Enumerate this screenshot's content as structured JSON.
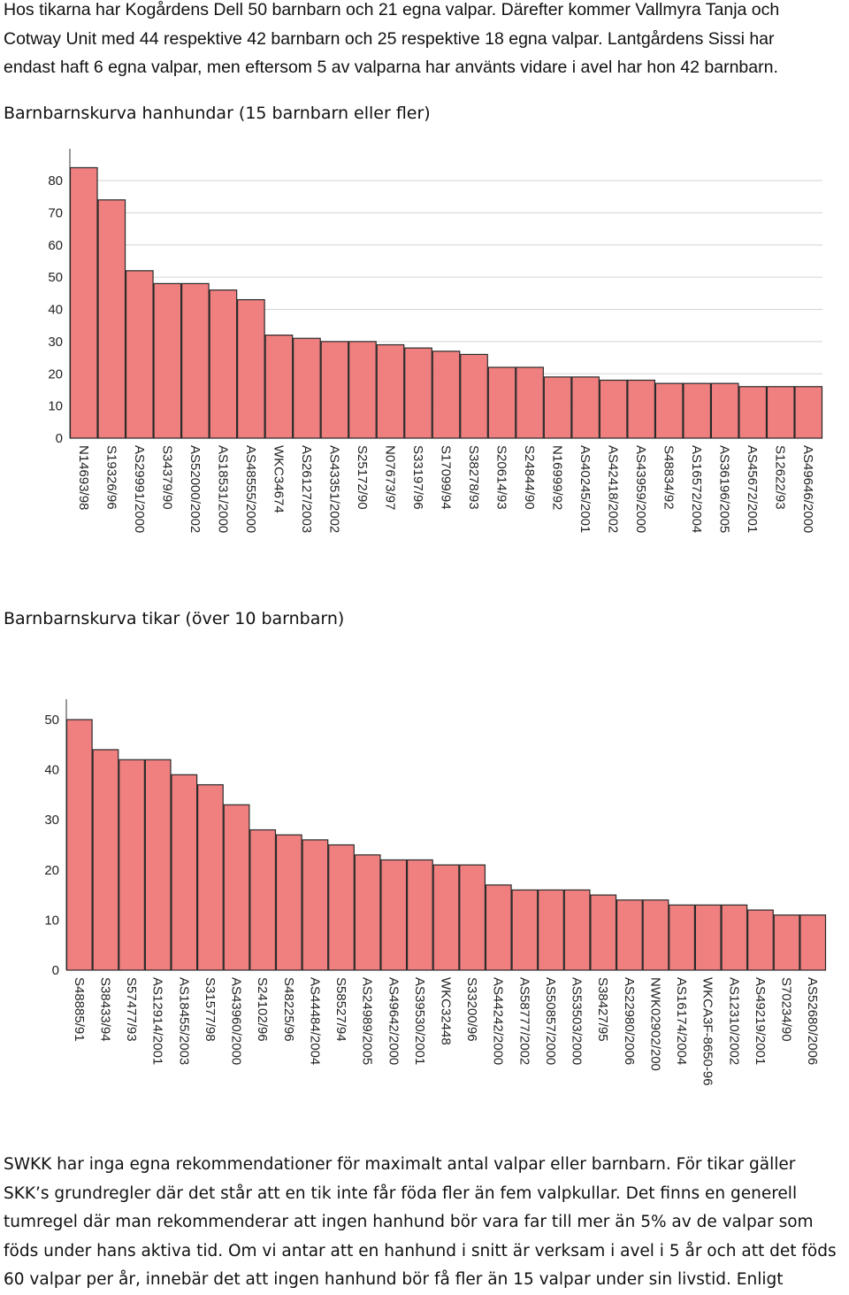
{
  "intro_lines": [
    "Hos tikarna har Kogårdens Dell 50 barnbarn och 21 egna valpar. Därefter kommer Vallmyra Tanja och",
    "Cotway Unit med 44 respektive 42 barnbarn och 25 respektive 18 egna valpar. Lantgårdens Sissi har",
    "endast haft 6 egna valpar, men eftersom 5 av valparna har använts vidare i avel har hon 42 barnbarn."
  ],
  "chart1_heading": "Barnbarnskurva hanhundar (15 barnbarn eller fler)",
  "chart2_heading": "Barnbarnskurva tikar (över 10 barnbarn)",
  "outro_lines": [
    "SWKK har inga egna rekommendationer för maximalt antal valpar eller barnbarn. För tikar gäller",
    "SKK’s grundregler där det står att en tik inte får föda fler än fem valpkullar. Det finns en generell",
    "tumregel där man rekommenderar att ingen hanhund bör vara far till mer än 5% av de valpar som",
    "föds under hans aktiva tid. Om vi antar att en hanhund i snitt är verksam i avel i 5 år och att det föds",
    "60 valpar per år, innebär det att ingen hanhund bör få fler än 15 valpar under sin livstid. Enligt"
  ],
  "colors": {
    "bar_fill": "#f08080",
    "bar_stroke": "#2a2a2a",
    "grid": "#d4d4d4",
    "axis": "#333333"
  },
  "chart_data": [
    {
      "type": "bar",
      "title": "Barnbarnskurva hanhundar (15 barnbarn eller fler)",
      "categories": [
        "N14693/98",
        "S19326/96",
        "AS29991/2000",
        "S34379/90",
        "AS52000/2002",
        "AS18531/2000",
        "AS48555/2000",
        "WKC34674",
        "AS26127/2003",
        "AS43351/2002",
        "S25172/90",
        "N07673/97",
        "S33197/96",
        "S17099/94",
        "S38278/93",
        "S20614/93",
        "S24844/90",
        "N16999/92",
        "AS40245/2001",
        "AS42418/2002",
        "AS43959/2000",
        "S48834/92",
        "AS16572/2004",
        "AS36196/2005",
        "AS45672/2001",
        "S12622/93",
        "AS49646/2000"
      ],
      "values": [
        84,
        74,
        52,
        48,
        48,
        46,
        43,
        32,
        31,
        30,
        30,
        29,
        28,
        27,
        26,
        22,
        22,
        19,
        19,
        18,
        18,
        17,
        17,
        17,
        16,
        16,
        16
      ],
      "ylim": [
        0,
        80
      ],
      "yticks": [
        0,
        10,
        20,
        30,
        40,
        50,
        60,
        70,
        80
      ],
      "grid": true
    },
    {
      "type": "bar",
      "title": "Barnbarnskurva tikar (över 10 barnbarn)",
      "categories": [
        "S48885/91",
        "S38433/94",
        "S57477/93",
        "AS12914/2001",
        "AS18455/2003",
        "S31577/98",
        "AS43960/2000",
        "S24102/96",
        "S48225/96",
        "AS44484/2004",
        "S58527/94",
        "AS24989/2005",
        "AS49642/2000",
        "AS39530/2001",
        "WKC32448",
        "S33200/96",
        "AS44242/2000",
        "AS58777/2002",
        "AS50857/2000",
        "AS53503/2000",
        "S38427/95",
        "AS22980/2006",
        "NWK02902/200",
        "AS16174/2004",
        "WKCA3F-8650-96",
        "AS12310/2002",
        "AS49219/2001",
        "S70234/90",
        "AS52680/2006"
      ],
      "values": [
        50,
        44,
        42,
        42,
        39,
        37,
        33,
        28,
        27,
        26,
        25,
        23,
        22,
        22,
        21,
        21,
        17,
        16,
        16,
        16,
        15,
        14,
        14,
        13,
        13,
        13,
        12,
        11,
        11
      ],
      "ylim": [
        0,
        50
      ],
      "yticks": [
        0,
        10,
        20,
        30,
        40,
        50
      ],
      "grid": false
    }
  ]
}
